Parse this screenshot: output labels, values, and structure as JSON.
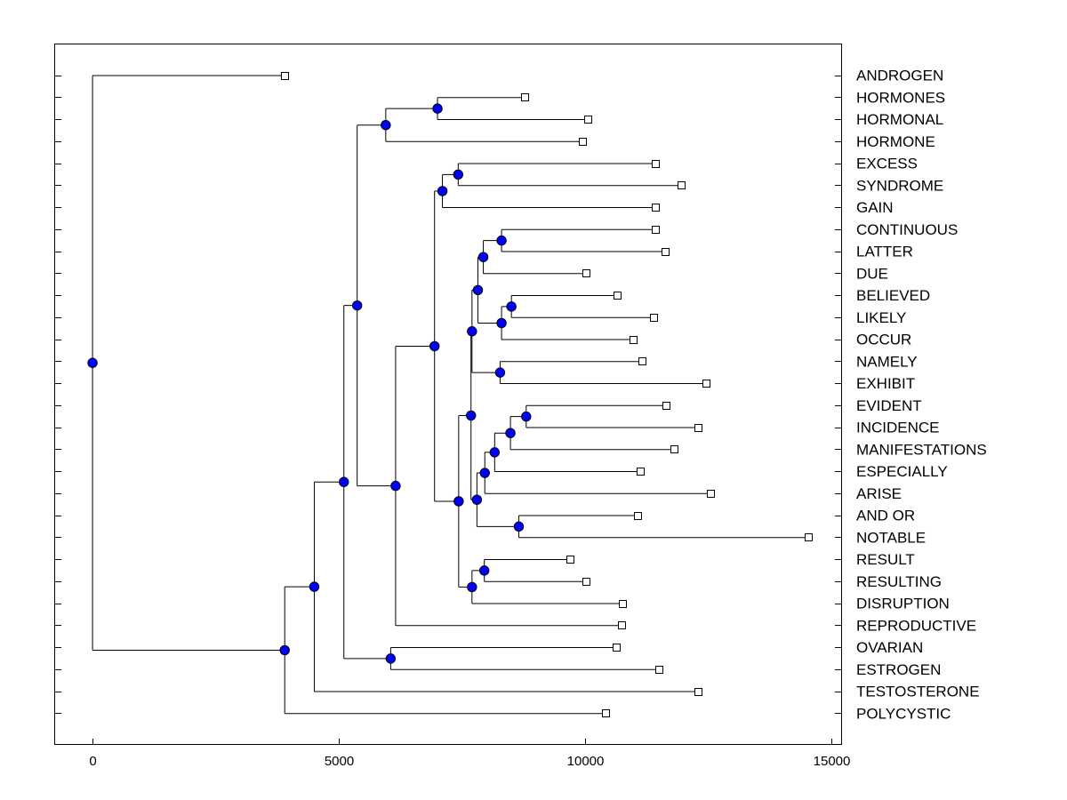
{
  "chart_data": {
    "type": "dendrogram",
    "title": "",
    "xlabel": "",
    "ylabel": "",
    "xlim": [
      -750,
      15200
    ],
    "xticks": [
      0,
      5000,
      10000,
      15000
    ],
    "xtick_labels": [
      "0",
      "5000",
      "10000",
      "15000"
    ],
    "leaves": [
      {
        "label": "ANDROGEN",
        "x": 3900
      },
      {
        "label": "HORMONES",
        "x": 8780
      },
      {
        "label": "HORMONAL",
        "x": 10050
      },
      {
        "label": "HORMONE",
        "x": 9950
      },
      {
        "label": "EXCESS",
        "x": 11430
      },
      {
        "label": "SYNDROME",
        "x": 11950
      },
      {
        "label": "GAIN",
        "x": 11420
      },
      {
        "label": "CONTINUOUS",
        "x": 11420
      },
      {
        "label": "LATTER",
        "x": 11620
      },
      {
        "label": "DUE",
        "x": 10030
      },
      {
        "label": "BELIEVED",
        "x": 10650
      },
      {
        "label": "LIKELY",
        "x": 11400
      },
      {
        "label": "OCCUR",
        "x": 10980
      },
      {
        "label": "NAMELY",
        "x": 11160
      },
      {
        "label": "EXHIBIT",
        "x": 12450
      },
      {
        "label": "EVIDENT",
        "x": 11650
      },
      {
        "label": "INCIDENCE",
        "x": 12290
      },
      {
        "label": "MANIFESTATIONS",
        "x": 11800
      },
      {
        "label": "ESPECIALLY",
        "x": 11130
      },
      {
        "label": "ARISE",
        "x": 12540
      },
      {
        "label": "AND OR",
        "x": 11070
      },
      {
        "label": "NOTABLE",
        "x": 14530
      },
      {
        "label": "RESULT",
        "x": 9700
      },
      {
        "label": "RESULTING",
        "x": 10020
      },
      {
        "label": "DISRUPTION",
        "x": 10770
      },
      {
        "label": "REPRODUCTIVE",
        "x": 10740
      },
      {
        "label": "OVARIAN",
        "x": 10630
      },
      {
        "label": "ESTROGEN",
        "x": 11500
      },
      {
        "label": "TESTOSTERONE",
        "x": 12300
      },
      {
        "label": "POLYCYSTIC",
        "x": 10410
      }
    ],
    "merges": [
      {
        "height": 7000,
        "children": [
          "L1",
          "L2"
        ]
      },
      {
        "height": 5950,
        "children": [
          "M0",
          "L3"
        ]
      },
      {
        "height": 7420,
        "children": [
          "L4",
          "L5"
        ]
      },
      {
        "height": 7100,
        "children": [
          "M2",
          "L6"
        ]
      },
      {
        "height": 8300,
        "children": [
          "L7",
          "L8"
        ]
      },
      {
        "height": 7930,
        "children": [
          "M4",
          "L9"
        ]
      },
      {
        "height": 8500,
        "children": [
          "L10",
          "L11"
        ]
      },
      {
        "height": 8300,
        "children": [
          "M6",
          "L12"
        ]
      },
      {
        "height": 7820,
        "children": [
          "M5",
          "M7"
        ]
      },
      {
        "height": 8270,
        "children": [
          "L13",
          "L14"
        ]
      },
      {
        "height": 7700,
        "children": [
          "M8",
          "M9"
        ]
      },
      {
        "height": 8800,
        "children": [
          "L15",
          "L16"
        ]
      },
      {
        "height": 8480,
        "children": [
          "M11",
          "L17"
        ]
      },
      {
        "height": 8160,
        "children": [
          "M12",
          "L18"
        ]
      },
      {
        "height": 7960,
        "children": [
          "M13",
          "L19"
        ]
      },
      {
        "height": 8650,
        "children": [
          "L20",
          "L21"
        ]
      },
      {
        "height": 7800,
        "children": [
          "M14",
          "M15"
        ]
      },
      {
        "height": 7680,
        "children": [
          "M10",
          "M16"
        ]
      },
      {
        "height": 7950,
        "children": [
          "L22",
          "L23"
        ]
      },
      {
        "height": 7700,
        "children": [
          "M18",
          "L24"
        ]
      },
      {
        "height": 7430,
        "children": [
          "M17",
          "M19"
        ]
      },
      {
        "height": 6940,
        "children": [
          "M3",
          "M20"
        ]
      },
      {
        "height": 6150,
        "children": [
          "M21",
          "L25"
        ]
      },
      {
        "height": 5370,
        "children": [
          "M1",
          "M22"
        ]
      },
      {
        "height": 6050,
        "children": [
          "L26",
          "L27"
        ]
      },
      {
        "height": 5100,
        "children": [
          "M23",
          "M24"
        ]
      },
      {
        "height": 4500,
        "children": [
          "M25",
          "L28"
        ]
      },
      {
        "height": 3900,
        "children": [
          "M26",
          "L29"
        ]
      },
      {
        "height": 0,
        "children": [
          "L0",
          "M27"
        ]
      }
    ]
  }
}
